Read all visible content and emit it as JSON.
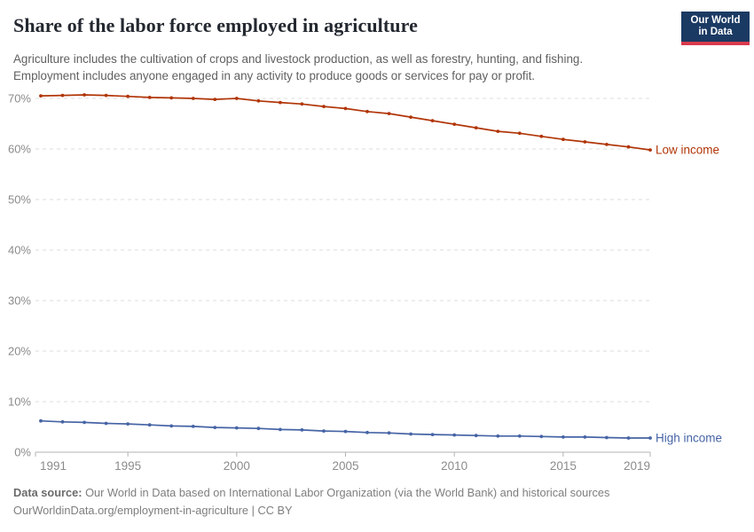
{
  "header": {
    "title": "Share of the labor force employed in agriculture",
    "subtitle_lines": [
      "Agriculture includes the cultivation of crops and livestock production, as well as forestry, hunting, and fishing.",
      "Employment includes anyone engaged in any activity to produce goods or services for pay or profit."
    ],
    "logo": {
      "line1": "Our World",
      "line2": "in Data",
      "bg_color": "#1b3a63",
      "accent_color": "#d83a4c"
    }
  },
  "chart_data": {
    "type": "line",
    "title": "Share of the labor force employed in agriculture",
    "xlabel": "",
    "ylabel": "",
    "xlim": [
      1991,
      2019
    ],
    "ylim": [
      0,
      70
    ],
    "grid": "horizontal-dashed",
    "legend_position": "line-end-labels",
    "x_ticks": [
      1991,
      1995,
      2000,
      2005,
      2010,
      2015,
      2019
    ],
    "y_ticks": [
      0,
      10,
      20,
      30,
      40,
      50,
      60,
      70
    ],
    "y_tick_suffix": "%",
    "x": [
      1991,
      1992,
      1993,
      1994,
      1995,
      1996,
      1997,
      1998,
      1999,
      2000,
      2001,
      2002,
      2003,
      2004,
      2005,
      2006,
      2007,
      2008,
      2009,
      2010,
      2011,
      2012,
      2013,
      2014,
      2015,
      2016,
      2017,
      2018,
      2019
    ],
    "series": [
      {
        "name": "Low income",
        "color": "#B13507",
        "values": [
          70.5,
          70.6,
          70.7,
          70.6,
          70.4,
          70.2,
          70.1,
          70.0,
          69.8,
          70.0,
          69.5,
          69.2,
          68.9,
          68.4,
          68.0,
          67.4,
          67.0,
          66.3,
          65.6,
          64.9,
          64.2,
          63.5,
          63.1,
          62.5,
          61.9,
          61.4,
          60.9,
          60.4,
          59.8
        ]
      },
      {
        "name": "High income",
        "color": "#4664A5",
        "values": [
          6.2,
          6.0,
          5.9,
          5.7,
          5.6,
          5.4,
          5.2,
          5.1,
          4.9,
          4.8,
          4.7,
          4.5,
          4.4,
          4.2,
          4.1,
          3.9,
          3.8,
          3.6,
          3.5,
          3.4,
          3.3,
          3.2,
          3.2,
          3.1,
          3.0,
          3.0,
          2.9,
          2.8,
          2.8
        ]
      }
    ],
    "style": {
      "grid_color": "#dcdcdc",
      "axis_color": "#b3b3b3",
      "tick_label_color": "#8b8b8b"
    }
  },
  "footer": {
    "source_label": "Data source:",
    "source_text": " Our World in Data based on International Labor Organization (via the World Bank) and historical sources",
    "link_line": "OurWorldinData.org/employment-in-agriculture | CC BY"
  }
}
